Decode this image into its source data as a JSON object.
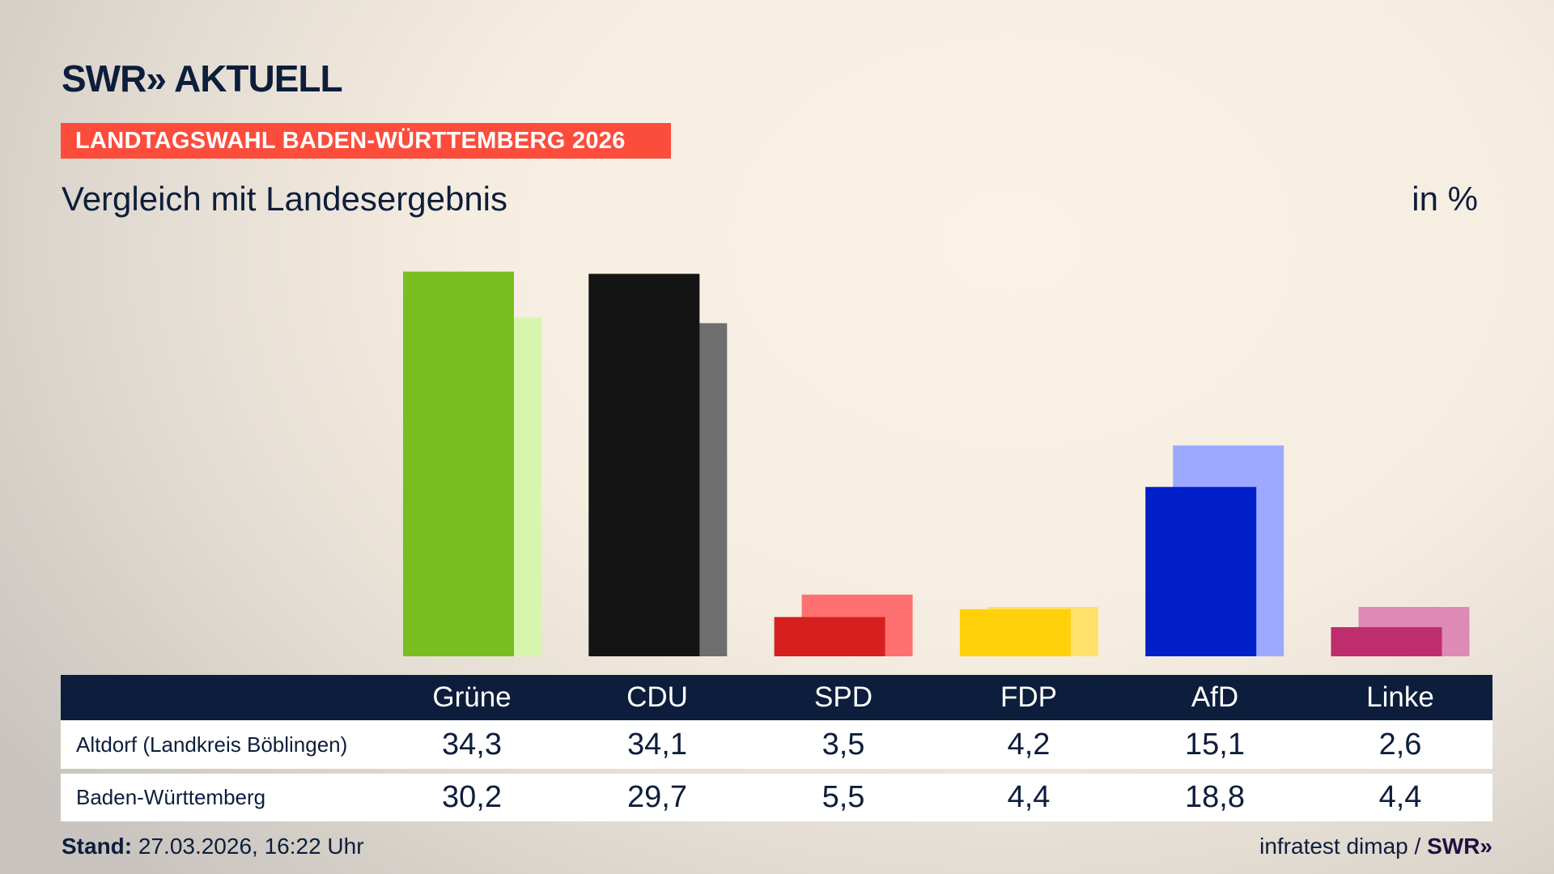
{
  "header": {
    "logo": "SWR» AKTUELL",
    "banner": "LANDTAGSWAHL BADEN-WÜRTTEMBERG 2026",
    "subtitle": "Vergleich mit Landesergebnis",
    "unit": "in %"
  },
  "chart_data": {
    "type": "bar",
    "categories": [
      "Grüne",
      "CDU",
      "SPD",
      "FDP",
      "AfD",
      "Linke"
    ],
    "series": [
      {
        "name": "Altdorf (Landkreis Böblingen)",
        "values": [
          34.3,
          34.1,
          3.5,
          4.2,
          15.1,
          2.6
        ],
        "display": [
          "34,3",
          "34,1",
          "3,5",
          "4,2",
          "15,1",
          "2,6"
        ]
      },
      {
        "name": "Baden-Württemberg",
        "values": [
          30.2,
          29.7,
          5.5,
          4.4,
          18.8,
          4.4
        ],
        "display": [
          "30,2",
          "29,7",
          "5,5",
          "4,4",
          "18,8",
          "4,4"
        ]
      }
    ],
    "colors": {
      "primary": [
        "#78be1e",
        "#141414",
        "#d61f1f",
        "#ffd10a",
        "#001fc8",
        "#be2d6e"
      ],
      "secondary": [
        "#d8f5ad",
        "#6e6e6e",
        "#ff7070",
        "#ffe06b",
        "#9ca9ff",
        "#de8ab4"
      ]
    },
    "ylim": [
      0,
      36
    ],
    "grid": false
  },
  "footer": {
    "stand_label": "Stand:",
    "stand_value": "27.03.2026, 16:22 Uhr",
    "source": "infratest dimap /",
    "source_logo": "SWR»"
  }
}
